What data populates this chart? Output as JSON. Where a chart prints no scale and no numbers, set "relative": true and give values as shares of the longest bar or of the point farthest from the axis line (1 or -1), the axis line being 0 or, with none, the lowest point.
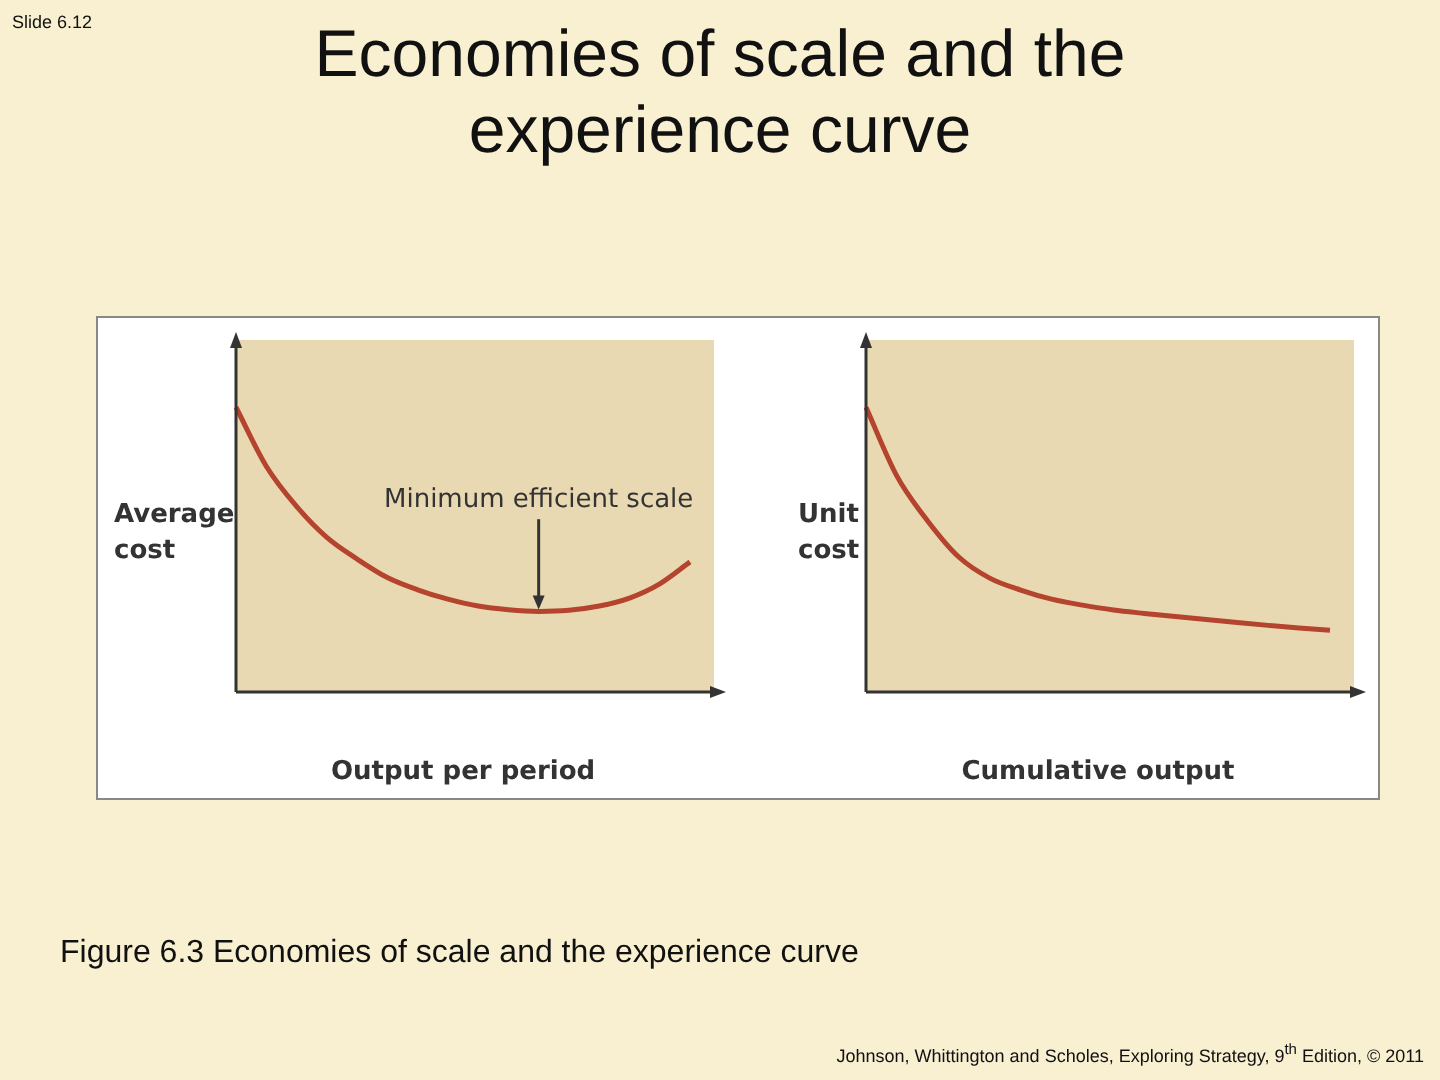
{
  "chart_data": [
    {
      "type": "line",
      "title": "Economies of scale and the experience curve",
      "xlabel": "Output per period",
      "ylabel": "Average cost",
      "relative": true,
      "marker": "none",
      "categories": [
        null,
        null,
        null,
        null,
        null,
        null,
        null,
        null,
        null,
        null,
        null,
        null,
        null,
        null,
        null,
        null
      ],
      "series": [
        {
          "color": "#b5442e",
          "values": [
            1,
            0.793,
            0.652,
            0.543,
            0.467,
            0.402,
            0.359,
            0.326,
            0.302,
            0.289,
            0.283,
            0.287,
            0.302,
            0.33,
            0.38,
            0.457
          ]
        }
      ],
      "annotations": [
        "Minimum efficient scale",
        "Slide 6.12",
        "Figure 6.3 Economies of scale and the experience curve",
        "Johnson, Whittington and Scholes, Exploring Strategy, 9$^{th}$ Edition, © 2011"
      ]
    },
    {
      "type": "line",
      "xlabel": "Cumulative output",
      "ylabel": "Unit cost",
      "relative": true,
      "marker": "none",
      "categories": [
        null,
        null,
        null,
        null,
        null,
        null,
        null,
        null,
        null,
        null,
        null,
        null,
        null,
        null,
        null,
        null
      ],
      "series": [
        {
          "color": "#b5442e",
          "values": [
            1,
            0.758,
            0.6,
            0.474,
            0.4,
            0.358,
            0.326,
            0.305,
            0.288,
            0.276,
            0.265,
            0.255,
            0.244,
            0.234,
            0.225,
            0.217
          ]
        }
      ]
    }
  ]
}
